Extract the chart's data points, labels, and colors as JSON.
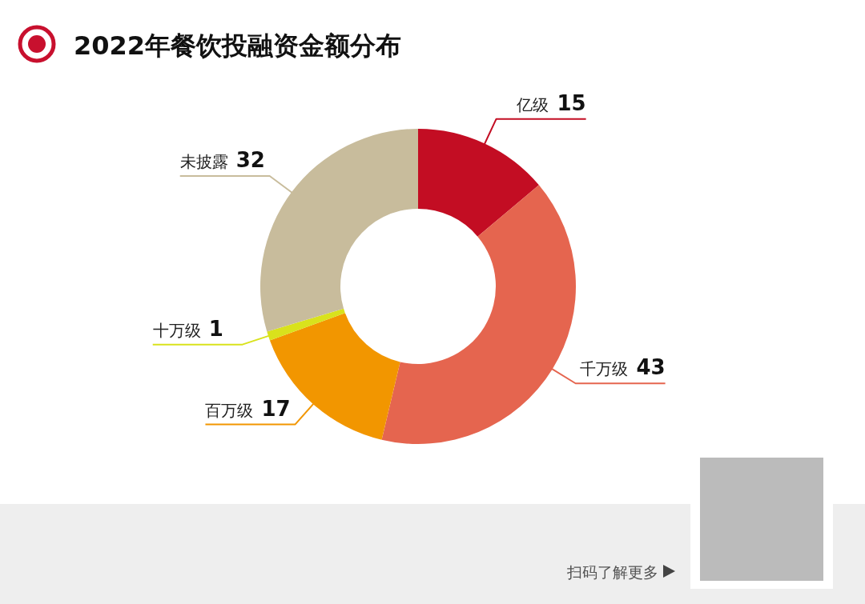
{
  "chart_data": {
    "type": "donut",
    "title": "2022年餐饮投融资金额分布",
    "categories": [
      "亿级",
      "千万级",
      "百万级",
      "十万级",
      "未披露"
    ],
    "values": [
      15,
      43,
      17,
      1,
      32
    ],
    "colors": [
      "#c30d23",
      "#e5654f",
      "#f29600",
      "#d9e21c",
      "#c8bc9c"
    ],
    "data_labels": true,
    "annotations": [
      "扫码了解更多"
    ]
  }
}
